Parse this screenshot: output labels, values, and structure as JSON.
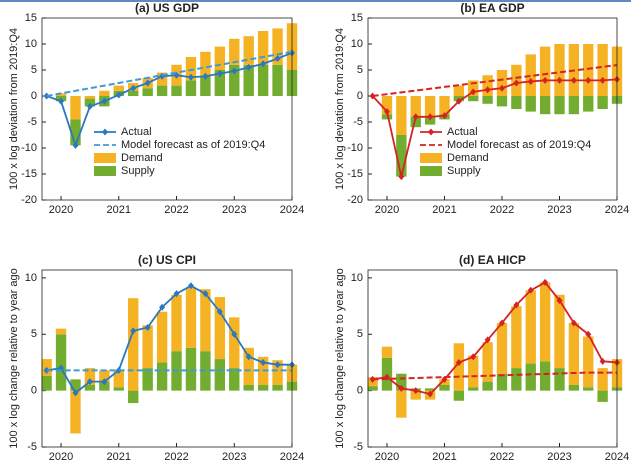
{
  "chart_data": [
    {
      "type": "combo",
      "title": "(a) US GDP",
      "ylabel": "100 x log deviation from 2019:Q4",
      "legend": "lower left",
      "grid": false,
      "x": [
        2019.75,
        2020,
        2020.25,
        2020.5,
        2020.75,
        2021,
        2021.25,
        2021.5,
        2021.75,
        2022,
        2022.25,
        2022.5,
        2022.75,
        2023,
        2023.25,
        2023.5,
        2023.75,
        2024
      ],
      "xlim": [
        2019.67,
        2024
      ],
      "xticks": [
        2020,
        2021,
        2022,
        2023,
        2024
      ],
      "ylim": [
        -20,
        15
      ],
      "yticks": [
        -20,
        -15,
        -10,
        -5,
        0,
        5,
        10,
        15
      ],
      "series": [
        {
          "name": "Actual",
          "type": "line",
          "linestyle": "solid",
          "marker": "diamond",
          "color": "#2a78bf",
          "values": [
            0,
            -1,
            -9.5,
            -2,
            -1,
            0.2,
            1.5,
            2.5,
            3.8,
            4,
            3.6,
            3.8,
            4.3,
            4.8,
            5.5,
            6.2,
            7.2,
            8.3
          ]
        },
        {
          "name": "Model forecast as of 2019:Q4",
          "type": "line",
          "linestyle": "dashed",
          "color": "#3c9ad6",
          "values": [
            0,
            0.5,
            1,
            1.5,
            2,
            2.5,
            3,
            3.5,
            4,
            4.5,
            5,
            5.5,
            6,
            6.5,
            7,
            7.5,
            8,
            8.5
          ]
        },
        {
          "name": "Demand",
          "type": "bar",
          "color": "#f5b324",
          "values": [
            0,
            0.5,
            -4.5,
            -0.5,
            1,
            1,
            1.5,
            2,
            2.5,
            4,
            4.5,
            4.5,
            4.5,
            5,
            5.5,
            6.5,
            7,
            9
          ]
        },
        {
          "name": "Supply",
          "type": "bar",
          "color": "#72ad2f",
          "values": [
            0,
            -1,
            -5,
            -1.5,
            -2,
            1,
            1,
            1.5,
            2,
            2,
            3,
            4,
            5,
            6,
            6,
            6,
            6,
            5
          ]
        }
      ]
    },
    {
      "type": "combo",
      "title": "(b) EA GDP",
      "ylabel": "100 x log deviation from 2019:Q4",
      "legend": "lower left",
      "grid": false,
      "x": [
        2019.75,
        2020,
        2020.25,
        2020.5,
        2020.75,
        2021,
        2021.25,
        2021.5,
        2021.75,
        2022,
        2022.25,
        2022.5,
        2022.75,
        2023,
        2023.25,
        2023.5,
        2023.75,
        2024
      ],
      "xlim": [
        2019.67,
        2024
      ],
      "xticks": [
        2020,
        2021,
        2022,
        2023,
        2024
      ],
      "ylim": [
        -20,
        15
      ],
      "yticks": [
        -20,
        -15,
        -10,
        -5,
        0,
        5,
        10,
        15
      ],
      "series": [
        {
          "name": "Actual",
          "type": "line",
          "linestyle": "solid",
          "marker": "diamond",
          "color": "#d62222",
          "values": [
            0,
            -3,
            -15.5,
            -4,
            -4,
            -3.8,
            -1,
            0.8,
            1.2,
            1.5,
            2.5,
            2.8,
            3,
            3,
            3,
            3,
            3,
            3.2
          ]
        },
        {
          "name": "Model forecast as of 2019:Q4",
          "type": "line",
          "linestyle": "dashed",
          "color": "#d62222",
          "values": [
            0,
            0.35,
            0.7,
            1.05,
            1.4,
            1.75,
            2.1,
            2.45,
            2.8,
            3.15,
            3.5,
            3.85,
            4.2,
            4.55,
            4.9,
            5.25,
            5.6,
            5.95
          ]
        },
        {
          "name": "Demand",
          "type": "bar",
          "color": "#f5b324",
          "values": [
            0,
            -3.5,
            -7.5,
            -4,
            -4,
            -3.5,
            2,
            3,
            4,
            5,
            6,
            8,
            9.5,
            10,
            10,
            10,
            10,
            9.5
          ]
        },
        {
          "name": "Supply",
          "type": "bar",
          "color": "#72ad2f",
          "values": [
            0,
            -1,
            -8,
            -2,
            -1.5,
            -1,
            -1,
            -1,
            -1.5,
            -2,
            -2.5,
            -3,
            -3.5,
            -3.5,
            -3.5,
            -3,
            -2.5,
            -1.5
          ]
        }
      ]
    },
    {
      "type": "combo",
      "title": "(c) US CPI",
      "ylabel": "100 x log change relative to year ago",
      "grid": false,
      "x": [
        2019.75,
        2020,
        2020.25,
        2020.5,
        2020.75,
        2021,
        2021.25,
        2021.5,
        2021.75,
        2022,
        2022.25,
        2022.5,
        2022.75,
        2023,
        2023.25,
        2023.5,
        2023.75,
        2024
      ],
      "xlim": [
        2019.67,
        2024
      ],
      "xticks": [
        2020,
        2021,
        2022,
        2023,
        2024
      ],
      "ylim": [
        -5,
        10.7
      ],
      "yticks": [
        -5,
        0,
        5,
        10
      ],
      "series": [
        {
          "name": "Actual",
          "type": "line",
          "linestyle": "solid",
          "marker": "diamond",
          "color": "#2a78bf",
          "values": [
            1.8,
            2.0,
            -0.2,
            0.8,
            0.8,
            1.8,
            5.3,
            5.6,
            7.4,
            8.6,
            9.3,
            8.6,
            7.0,
            5.0,
            3.0,
            2.5,
            2.3,
            2.3
          ]
        },
        {
          "name": "Model forecast",
          "type": "line",
          "linestyle": "dashed",
          "color": "#3c9ad6",
          "values": [
            1.8,
            1.8,
            1.8,
            1.8,
            1.8,
            1.8,
            1.8,
            1.8,
            1.8,
            1.8,
            1.8,
            1.8,
            1.8,
            1.8,
            1.8,
            1.8,
            1.8,
            1.8
          ]
        },
        {
          "name": "Demand",
          "type": "bar",
          "color": "#f5b324",
          "values": [
            1.5,
            0.5,
            -3.8,
            1.5,
            1.0,
            1.5,
            8.2,
            3.8,
            4.5,
            5.0,
            5.3,
            5.5,
            5.5,
            4.5,
            3.3,
            2.5,
            2.2,
            1.5
          ]
        },
        {
          "name": "Supply",
          "type": "bar",
          "color": "#72ad2f",
          "values": [
            1.3,
            5.0,
            1.0,
            0.5,
            0.8,
            0.3,
            -1.1,
            2.0,
            2.5,
            3.5,
            3.8,
            3.5,
            2.8,
            2.0,
            0.5,
            0.5,
            0.5,
            0.8
          ]
        }
      ]
    },
    {
      "type": "combo",
      "title": "(d) EA HICP",
      "ylabel": "100 x log change relative to year ago",
      "grid": false,
      "x": [
        2019.75,
        2020,
        2020.25,
        2020.5,
        2020.75,
        2021,
        2021.25,
        2021.5,
        2021.75,
        2022,
        2022.25,
        2022.5,
        2022.75,
        2023,
        2023.25,
        2023.5,
        2023.75,
        2024
      ],
      "xlim": [
        2019.67,
        2024
      ],
      "xticks": [
        2020,
        2021,
        2022,
        2023,
        2024
      ],
      "ylim": [
        -5,
        10.7
      ],
      "yticks": [
        -5,
        0,
        5,
        10
      ],
      "series": [
        {
          "name": "Actual",
          "type": "line",
          "linestyle": "solid",
          "marker": "diamond",
          "color": "#d62222",
          "values": [
            1.0,
            1.2,
            0.2,
            0.0,
            -0.3,
            1.0,
            2.5,
            3.0,
            4.5,
            6.0,
            7.6,
            8.9,
            9.6,
            8.0,
            6.0,
            5.0,
            2.6,
            2.5
          ]
        },
        {
          "name": "Model forecast",
          "type": "line",
          "linestyle": "dashed",
          "color": "#d62222",
          "values": [
            1.0,
            1.04,
            1.08,
            1.12,
            1.16,
            1.2,
            1.24,
            1.28,
            1.32,
            1.36,
            1.4,
            1.44,
            1.48,
            1.52,
            1.56,
            1.6,
            1.6,
            1.6
          ]
        },
        {
          "name": "Demand",
          "type": "bar",
          "color": "#f5b324",
          "values": [
            0.8,
            1.0,
            -2.4,
            -0.8,
            -0.8,
            0.5,
            4.2,
            2.8,
            3.5,
            4.5,
            5.5,
            6.5,
            7.0,
            6.5,
            5.5,
            4.5,
            2.0,
            2.5
          ]
        },
        {
          "name": "Supply",
          "type": "bar",
          "color": "#72ad2f",
          "values": [
            0.4,
            2.9,
            1.5,
            0.2,
            0.2,
            0.5,
            -0.9,
            0.3,
            0.8,
            1.5,
            2.0,
            2.4,
            2.6,
            2.0,
            0.5,
            0.3,
            -1.0,
            0.3
          ]
        }
      ]
    }
  ]
}
